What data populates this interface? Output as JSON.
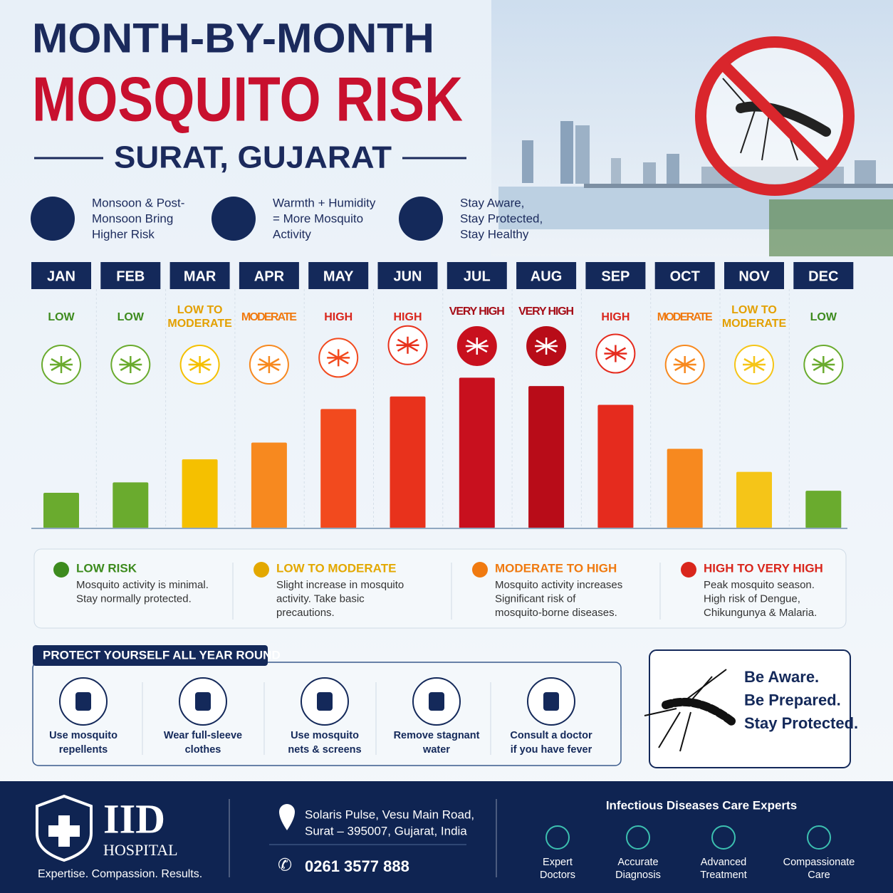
{
  "header": {
    "title_line1": "MONTH-BY-MONTH",
    "title_line2": "MOSQUITO RISK",
    "location": "SURAT, GUJARAT"
  },
  "info": [
    {
      "lines": [
        "Monsoon & Post-",
        "Monsoon Bring",
        "Higher Risk"
      ]
    },
    {
      "lines": [
        "Warmth + Humidity",
        "= More Mosquito",
        "Activity"
      ]
    },
    {
      "lines": [
        "Stay Aware,",
        "Stay Protected,",
        "Stay Healthy"
      ]
    }
  ],
  "chart_data": {
    "type": "bar",
    "categories": [
      "JAN",
      "FEB",
      "MAR",
      "APR",
      "MAY",
      "JUN",
      "JUL",
      "AUG",
      "SEP",
      "OCT",
      "NOV",
      "DEC"
    ],
    "values": [
      17,
      22,
      33,
      41,
      57,
      63,
      72,
      68,
      59,
      38,
      27,
      18
    ],
    "colors": [
      "#6aab2e",
      "#6aab2e",
      "#f5c000",
      "#f7891f",
      "#f24a1e",
      "#e8321c",
      "#c8101e",
      "#b80c18",
      "#e52b1e",
      "#f7891f",
      "#f5c518",
      "#6aab2e"
    ],
    "risk_levels": [
      [
        "LOW"
      ],
      [
        "LOW"
      ],
      [
        "LOW TO",
        "MODERATE"
      ],
      [
        "MODERATE"
      ],
      [
        "HIGH"
      ],
      [
        "HIGH"
      ],
      [
        "VERY HIGH"
      ],
      [
        "VERY HIGH"
      ],
      [
        "HIGH"
      ],
      [
        "MODERATE"
      ],
      [
        "LOW TO",
        "MODERATE"
      ],
      [
        "LOW"
      ]
    ],
    "risk_colors": [
      "#3d8b1e",
      "#3d8b1e",
      "#e3a000",
      "#f07a10",
      "#d9261c",
      "#d9261c",
      "#a50d17",
      "#a50d17",
      "#d9261c",
      "#f07a10",
      "#e3a000",
      "#3d8b1e"
    ],
    "ylim": [
      0,
      100
    ]
  },
  "legend": [
    {
      "title": "LOW RISK",
      "color": "#3d8b1e",
      "lines": [
        "Mosquito activity is minimal.",
        "Stay normally protected."
      ]
    },
    {
      "title": "LOW TO MODERATE",
      "color": "#e3a800",
      "lines": [
        "Slight increase in mosquito",
        "activity. Take basic",
        "precautions."
      ]
    },
    {
      "title": "MODERATE TO HIGH",
      "color": "#f07a10",
      "lines": [
        "Mosquito activity increases",
        "Significant risk of",
        "mosquito-borne diseases."
      ]
    },
    {
      "title": "HIGH TO VERY HIGH",
      "color": "#d9261c",
      "lines": [
        "Peak mosquito season.",
        "High risk of Dengue,",
        "Chikungunya & Malaria."
      ]
    }
  ],
  "protect": {
    "title": "PROTECT YOURSELF ALL YEAR ROUND",
    "items": [
      {
        "lines": [
          "Use mosquito",
          "repellents"
        ]
      },
      {
        "lines": [
          "Wear full-sleeve",
          "clothes"
        ]
      },
      {
        "lines": [
          "Use mosquito",
          "nets & screens"
        ]
      },
      {
        "lines": [
          "Remove stagnant",
          "water"
        ]
      },
      {
        "lines": [
          "Consult a doctor",
          "if you have fever"
        ]
      }
    ]
  },
  "tagline": [
    "Be Aware.",
    "Be Prepared.",
    "Stay Protected."
  ],
  "footer": {
    "logo": "IID",
    "logo_sub": "HOSPITAL",
    "motto": "Expertise. Compassion. Results.",
    "address": [
      "Solaris Pulse, Vesu Main Road,",
      "Surat – 395007, Gujarat, India"
    ],
    "phone": "0261 3577 888",
    "heading": "Infectious Diseases Care Experts",
    "features": [
      {
        "lines": [
          "Expert",
          "Doctors"
        ]
      },
      {
        "lines": [
          "Accurate",
          "Diagnosis"
        ]
      },
      {
        "lines": [
          "Advanced",
          "Treatment"
        ]
      },
      {
        "lines": [
          "Compassionate",
          "Care"
        ]
      }
    ]
  }
}
